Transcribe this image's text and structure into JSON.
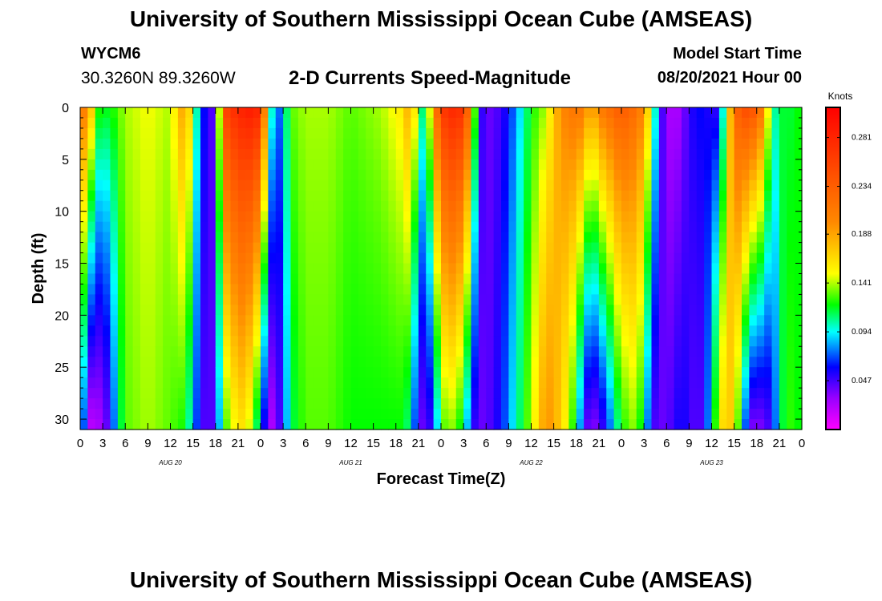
{
  "header": {
    "title": "University of Southern Mississippi Ocean Cube (AMSEAS)",
    "station": "WYCM6",
    "coords": "30.3260N  89.3260W",
    "subtitle": "2-D Currents Speed-Magnitude",
    "model_start_label": "Model Start Time",
    "model_start_value": "08/20/2021 Hour 00"
  },
  "footer": {
    "title": "University of Southern Mississippi Ocean Cube (AMSEAS)"
  },
  "chart_data": {
    "type": "heatmap",
    "title": "2-D Currents Speed-Magnitude",
    "xlabel": "Forecast Time(Z)",
    "ylabel": "Depth (ft)",
    "x_ticks": [
      "0",
      "3",
      "6",
      "9",
      "12",
      "15",
      "18",
      "21",
      "0",
      "3",
      "6",
      "9",
      "12",
      "15",
      "18",
      "21",
      "0",
      "3",
      "6",
      "9",
      "12",
      "15",
      "18",
      "21",
      "0",
      "3",
      "6",
      "9",
      "12",
      "15",
      "18",
      "21",
      "0"
    ],
    "day_labels": [
      "AUG 20",
      "AUG 21",
      "AUG 22",
      "AUG 23"
    ],
    "x_range_hours": [
      0,
      96
    ],
    "y_ticks": [
      0,
      5,
      10,
      15,
      20,
      25,
      30
    ],
    "ylim": [
      0,
      31
    ],
    "colorbar": {
      "label": "Knots",
      "ticks": [
        "0.281",
        "0.234",
        "0.188",
        "0.141",
        "0.094",
        "0.047"
      ],
      "tick_values": [
        0.281,
        0.234,
        0.188,
        0.141,
        0.094,
        0.047
      ],
      "range": [
        0,
        0.31
      ],
      "stops": [
        {
          "v": 0.0,
          "c": "#ff00ff"
        },
        {
          "v": 0.03,
          "c": "#9900ff"
        },
        {
          "v": 0.06,
          "c": "#0000ff"
        },
        {
          "v": 0.094,
          "c": "#00ffff"
        },
        {
          "v": 0.12,
          "c": "#00ff00"
        },
        {
          "v": 0.15,
          "c": "#ffff00"
        },
        {
          "v": 0.2,
          "c": "#ff8800"
        },
        {
          "v": 0.31,
          "c": "#ff0000"
        }
      ]
    },
    "speed_profile_hours": [
      0,
      1,
      2,
      3,
      4,
      5,
      6,
      9,
      12,
      14,
      16,
      17,
      18,
      19,
      20,
      21,
      22,
      23,
      24,
      25,
      26,
      27,
      28,
      30,
      33,
      36,
      40,
      43,
      44,
      45,
      46,
      47,
      48,
      49,
      50,
      51,
      52,
      53,
      54,
      55,
      56,
      57,
      58,
      60,
      62,
      64,
      66,
      67,
      68,
      69,
      70,
      72,
      74,
      75,
      76,
      77,
      78,
      79,
      80,
      81,
      82,
      83,
      84,
      85,
      86,
      87,
      88,
      89,
      90,
      91,
      92,
      93,
      94,
      95,
      96
    ],
    "speed_surface": [
      0.2,
      0.22,
      0.13,
      0.12,
      0.12,
      0.13,
      0.14,
      0.15,
      0.14,
      0.2,
      0.07,
      0.05,
      0.04,
      0.25,
      0.27,
      0.28,
      0.29,
      0.29,
      0.28,
      0.14,
      0.06,
      0.09,
      0.13,
      0.14,
      0.14,
      0.13,
      0.14,
      0.16,
      0.2,
      0.12,
      0.1,
      0.2,
      0.26,
      0.28,
      0.28,
      0.27,
      0.2,
      0.06,
      0.04,
      0.04,
      0.05,
      0.06,
      0.08,
      0.12,
      0.14,
      0.2,
      0.22,
      0.21,
      0.18,
      0.21,
      0.22,
      0.24,
      0.22,
      0.2,
      0.14,
      0.06,
      0.03,
      0.02,
      0.03,
      0.05,
      0.06,
      0.06,
      0.05,
      0.05,
      0.14,
      0.22,
      0.25,
      0.25,
      0.24,
      0.2,
      0.11,
      0.1,
      0.13,
      0.1,
      0.14
    ],
    "speed_bottom": [
      0.12,
      0.02,
      0.02,
      0.03,
      0.05,
      0.1,
      0.13,
      0.14,
      0.13,
      0.12,
      0.05,
      0.04,
      0.05,
      0.12,
      0.14,
      0.16,
      0.16,
      0.13,
      0.09,
      0.02,
      0.03,
      0.06,
      0.11,
      0.13,
      0.13,
      0.12,
      0.12,
      0.12,
      0.1,
      0.04,
      0.04,
      0.06,
      0.12,
      0.14,
      0.13,
      0.11,
      0.06,
      0.04,
      0.04,
      0.05,
      0.06,
      0.08,
      0.1,
      0.14,
      0.2,
      0.17,
      0.11,
      0.05,
      0.03,
      0.04,
      0.06,
      0.12,
      0.14,
      0.1,
      0.05,
      0.04,
      0.04,
      0.05,
      0.06,
      0.05,
      0.04,
      0.05,
      0.1,
      0.15,
      0.18,
      0.16,
      0.1,
      0.04,
      0.03,
      0.04,
      0.05,
      0.1,
      0.13,
      0.12,
      0.12
    ]
  }
}
